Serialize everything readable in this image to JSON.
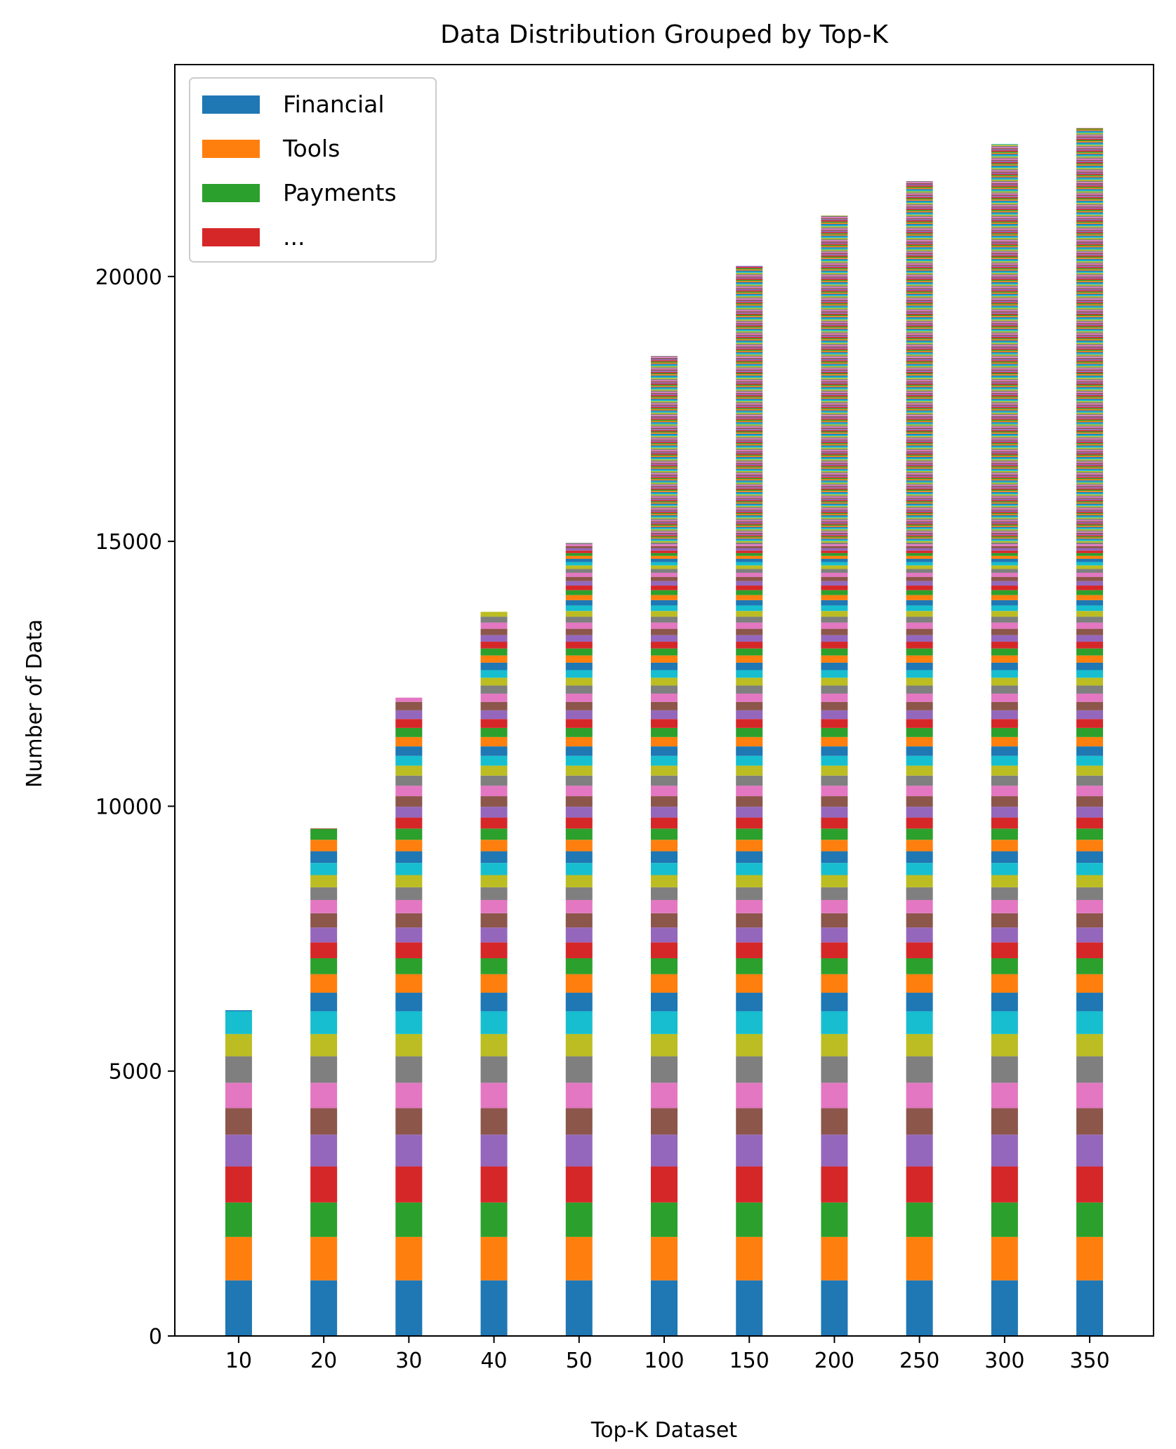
{
  "chart_data": {
    "type": "bar",
    "stacked": true,
    "title": "Data Distribution Grouped by Top-K",
    "xlabel": "Top-K Dataset",
    "ylabel": "Number of Data",
    "ylim": [
      0,
      24000
    ],
    "yticks": [
      0,
      5000,
      10000,
      15000,
      20000
    ],
    "categories": [
      "10",
      "20",
      "30",
      "40",
      "50",
      "100",
      "150",
      "200",
      "250",
      "300",
      "350"
    ],
    "totals": [
      6150,
      9580,
      12050,
      13670,
      14970,
      18500,
      20200,
      21150,
      21800,
      22500,
      22800
    ],
    "base_segments": [
      1050,
      820,
      650,
      680,
      600,
      500,
      480,
      500,
      420,
      430,
      350,
      350,
      300,
      300,
      280,
      270,
      250,
      240,
      230,
      230
    ],
    "legend": {
      "position": "upper left",
      "entries": [
        {
          "label": "Financial",
          "color": "#1f77b4"
        },
        {
          "label": "Tools",
          "color": "#ff7f0e"
        },
        {
          "label": "Payments",
          "color": "#2ca02c"
        },
        {
          "label": "...",
          "color": "#d62728"
        }
      ]
    },
    "palette": [
      "#1f77b4",
      "#ff7f0e",
      "#2ca02c",
      "#d62728",
      "#9467bd",
      "#8c564b",
      "#e377c2",
      "#7f7f7f",
      "#bcbd22",
      "#17becf"
    ],
    "grid": false
  }
}
